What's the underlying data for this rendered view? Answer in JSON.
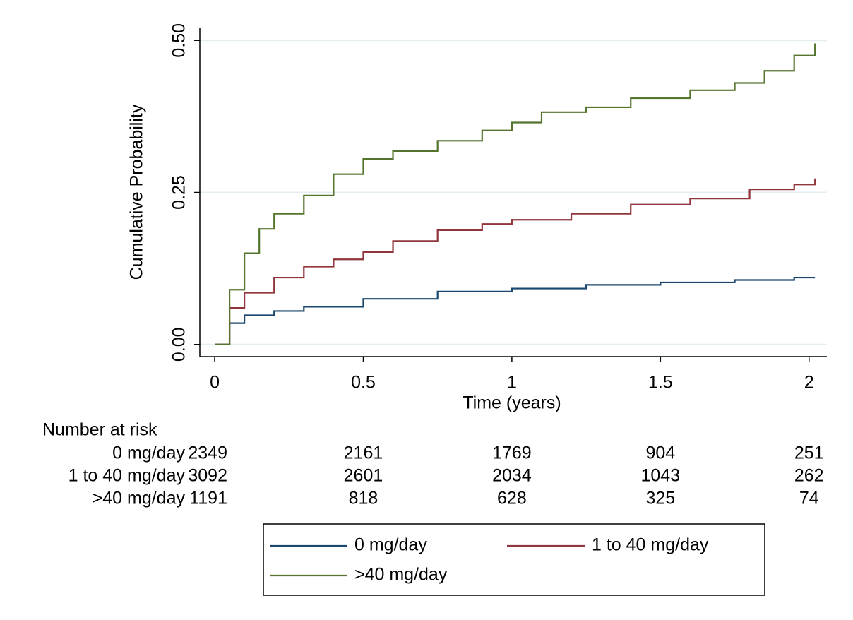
{
  "chart_data": {
    "type": "step",
    "y_label": "Cumulative Probability",
    "x_label": "Time (years)",
    "xlim": [
      -0.05,
      2.06
    ],
    "ylim": [
      -0.02,
      0.52
    ],
    "xticks": [
      0,
      0.5,
      1,
      1.5,
      2
    ],
    "yticks": [
      {
        "value": 0,
        "label": "0.00"
      },
      {
        "value": 0.25,
        "label": "0.25"
      },
      {
        "value": 0.5,
        "label": "0.50"
      }
    ],
    "grid": true,
    "series": [
      {
        "name": "0 mg/day",
        "color": "#1a476f",
        "x": [
          0,
          0.05,
          0.1,
          0.2,
          0.3,
          0.5,
          0.75,
          1.0,
          1.25,
          1.5,
          1.75,
          1.95,
          2.02
        ],
        "values": [
          0,
          0.035,
          0.048,
          0.055,
          0.062,
          0.075,
          0.087,
          0.092,
          0.098,
          0.102,
          0.106,
          0.11,
          0.11
        ]
      },
      {
        "name": "1 to 40 mg/day",
        "color": "#90353b",
        "x": [
          0,
          0.05,
          0.1,
          0.2,
          0.3,
          0.4,
          0.5,
          0.6,
          0.75,
          0.9,
          1.0,
          1.2,
          1.4,
          1.6,
          1.8,
          1.95,
          2.02
        ],
        "values": [
          0,
          0.06,
          0.085,
          0.11,
          0.128,
          0.14,
          0.152,
          0.17,
          0.188,
          0.198,
          0.205,
          0.215,
          0.23,
          0.24,
          0.255,
          0.263,
          0.273
        ]
      },
      {
        "name": ">40 mg/day",
        "color": "#55752f",
        "x": [
          0,
          0.05,
          0.1,
          0.15,
          0.2,
          0.3,
          0.4,
          0.5,
          0.6,
          0.75,
          0.9,
          1.0,
          1.1,
          1.25,
          1.4,
          1.6,
          1.75,
          1.85,
          1.95,
          2.02
        ],
        "values": [
          0,
          0.09,
          0.15,
          0.19,
          0.215,
          0.245,
          0.28,
          0.305,
          0.318,
          0.335,
          0.352,
          0.365,
          0.382,
          0.39,
          0.405,
          0.418,
          0.43,
          0.45,
          0.475,
          0.495
        ]
      }
    ],
    "risk_table": {
      "title": "Number at risk",
      "rows": [
        {
          "label": "0 mg/day",
          "values": [
            "2349",
            "2161",
            "1769",
            "904",
            "251"
          ]
        },
        {
          "label": "1 to 40 mg/day",
          "values": [
            "3092",
            "2601",
            "2034",
            "1043",
            "262"
          ]
        },
        {
          "label": ">40 mg/day",
          "values": [
            "1191",
            "818",
            "628",
            "325",
            "74"
          ]
        }
      ]
    }
  }
}
